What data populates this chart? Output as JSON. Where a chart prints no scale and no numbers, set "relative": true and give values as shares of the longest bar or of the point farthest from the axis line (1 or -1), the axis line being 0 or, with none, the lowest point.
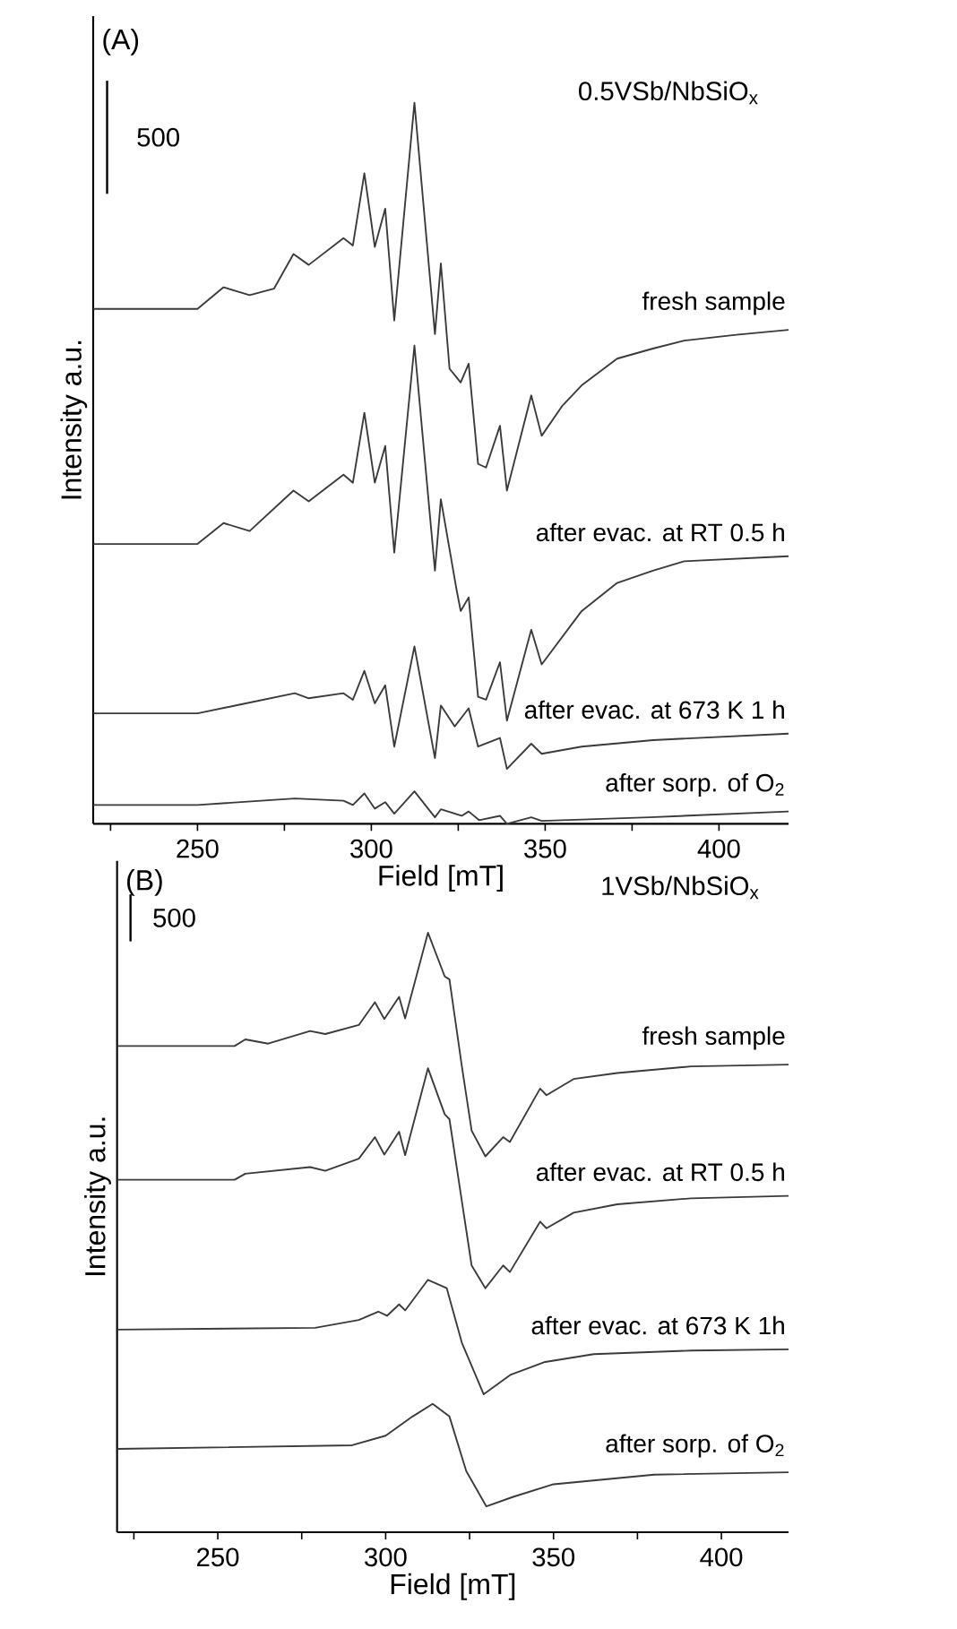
{
  "chart_data": [
    {
      "type": "line",
      "title": "(A)",
      "subtitle": "0.5VSb/NbSiO$_{x}$",
      "xlabel": "Field [mT]",
      "ylabel": "Intensity a.u.",
      "relative": true,
      "annotations": [
        "500"
      ],
      "xlim": [
        220,
        420
      ],
      "xticks": [
        {
          "value": 225,
          "label": null
        },
        250,
        {
          "value": 275,
          "label": null
        },
        300,
        {
          "value": 325,
          "label": null
        },
        350,
        {
          "value": 375,
          "label": null
        },
        400
      ],
      "series": [
        {
          "name": "fresh sample",
          "color": "#3a3a3a",
          "x": [
            220,
            250,
            257.5,
            265,
            272,
            277.6,
            282,
            292,
            294.7,
            298,
            301,
            304,
            306.6,
            312.4,
            318.3,
            320,
            322.5,
            325.7,
            328,
            330.7,
            333,
            337,
            339,
            346,
            349,
            355,
            360.5,
            370.7,
            381,
            390,
            405,
            420
          ],
          "values": [
            0.714,
            0.714,
            0.744,
            0.733,
            0.742,
            0.79,
            0.775,
            0.812,
            0.802,
            0.902,
            0.8,
            0.853,
            0.698,
            1.0,
            0.679,
            0.777,
            0.631,
            0.612,
            0.638,
            0.499,
            0.494,
            0.552,
            0.462,
            0.594,
            0.538,
            0.58,
            0.608,
            0.645,
            0.659,
            0.67,
            0.678,
            0.685
          ]
        },
        {
          "name": "after evac. at RT 0.5 h",
          "color": "#3a3a3a",
          "x": [
            220,
            250,
            257.5,
            265,
            277.6,
            282,
            292,
            294.7,
            298,
            301,
            304,
            306.6,
            312.4,
            318.3,
            320,
            324.5,
            325.7,
            328,
            330.7,
            333,
            337,
            339,
            346,
            349,
            360.5,
            370.7,
            381,
            390,
            420
          ],
          "values": [
            0.388,
            0.388,
            0.417,
            0.406,
            0.462,
            0.447,
            0.484,
            0.473,
            0.57,
            0.473,
            0.524,
            0.376,
            0.663,
            0.351,
            0.45,
            0.325,
            0.295,
            0.314,
            0.176,
            0.172,
            0.224,
            0.143,
            0.269,
            0.221,
            0.295,
            0.334,
            0.351,
            0.364,
            0.371
          ]
        },
        {
          "name": "after evac. at 673 K 1 h",
          "color": "#3a3a3a",
          "x": [
            220,
            250,
            262,
            278,
            282,
            292,
            294.7,
            298,
            301,
            304,
            306.6,
            312.4,
            318.3,
            320,
            324,
            328,
            330.7,
            337,
            339,
            346,
            349,
            360.5,
            381,
            420
          ],
          "values": [
            0.153,
            0.153,
            0.165,
            0.181,
            0.174,
            0.181,
            0.172,
            0.212,
            0.167,
            0.192,
            0.107,
            0.246,
            0.091,
            0.164,
            0.135,
            0.16,
            0.107,
            0.119,
            0.076,
            0.111,
            0.097,
            0.107,
            0.116,
            0.125
          ]
        },
        {
          "name": "after sorp. of O$_{2}$",
          "color": "#3a3a3a",
          "x": [
            220,
            250,
            278,
            292,
            294.7,
            298,
            301,
            304,
            306.6,
            312.4,
            318.3,
            320,
            326,
            328,
            331,
            337,
            339,
            346,
            349,
            380,
            420
          ],
          "values": [
            0.026,
            0.026,
            0.035,
            0.032,
            0.026,
            0.042,
            0.021,
            0.03,
            0.014,
            0.045,
            0.009,
            0.02,
            0.011,
            0.017,
            0.005,
            0.011,
            0,
            0.009,
            0.004,
            0.009,
            0.017
          ]
        }
      ]
    },
    {
      "type": "line",
      "title": "(B)",
      "subtitle": "1VSb/NbSiO$_{x}$",
      "xlabel": "Field [mT]",
      "ylabel": "Intensity a.u.",
      "relative": true,
      "annotations": [
        "500"
      ],
      "xlim": [
        220,
        420
      ],
      "xticks": [
        {
          "value": 225,
          "label": null
        },
        250,
        {
          "value": 275,
          "label": null
        },
        300,
        {
          "value": 325,
          "label": null
        },
        350,
        {
          "value": 375,
          "label": null
        },
        400
      ],
      "series": [
        {
          "name": "fresh sample",
          "color": "#3a3a3a",
          "x": [
            220,
            255,
            258.2,
            265,
            277.5,
            282,
            292,
            296.8,
            299.6,
            304,
            305.8,
            312.6,
            317.6,
            319,
            322.7,
            325.6,
            329.7,
            335,
            337,
            346,
            347.9,
            356,
            369,
            391,
            420
          ],
          "values": [
            0.811,
            0.811,
            0.822,
            0.815,
            0.836,
            0.831,
            0.846,
            0.884,
            0.856,
            0.893,
            0.857,
            1.0,
            0.927,
            0.922,
            0.777,
            0.67,
            0.627,
            0.659,
            0.651,
            0.74,
            0.729,
            0.756,
            0.766,
            0.777,
            0.78
          ]
        },
        {
          "name": "after evac. at RT 0.5 h",
          "color": "#3a3a3a",
          "x": [
            220,
            255,
            258.2,
            277.5,
            282,
            292,
            296.8,
            299.6,
            304,
            305.8,
            312.6,
            317.6,
            319,
            322.7,
            325.6,
            329.7,
            335,
            337,
            346,
            347.9,
            356,
            369,
            391,
            420
          ],
          "values": [
            0.588,
            0.588,
            0.598,
            0.609,
            0.603,
            0.623,
            0.659,
            0.63,
            0.668,
            0.629,
            0.774,
            0.697,
            0.689,
            0.552,
            0.445,
            0.407,
            0.445,
            0.434,
            0.518,
            0.507,
            0.533,
            0.547,
            0.557,
            0.561
          ]
        },
        {
          "name": "after evac. at 673 K  1h",
          "color": "#3a3a3a",
          "x": [
            220,
            279,
            292,
            297.8,
            300.4,
            304,
            305.8,
            312.6,
            318.2,
            322.7,
            329.2,
            337.3,
            347.5,
            362,
            391,
            420
          ],
          "values": [
            0.338,
            0.341,
            0.354,
            0.368,
            0.361,
            0.38,
            0.37,
            0.421,
            0.407,
            0.316,
            0.23,
            0.263,
            0.284,
            0.297,
            0.303,
            0.305
          ]
        },
        {
          "name": "after sorp. of O$_{2}$",
          "color": "#3a3a3a",
          "x": [
            220,
            290,
            300,
            308,
            314,
            319,
            324,
            330,
            338,
            350,
            380,
            420
          ],
          "values": [
            0.139,
            0.145,
            0.161,
            0.193,
            0.214,
            0.193,
            0.102,
            0.043,
            0.059,
            0.08,
            0.096,
            0.1
          ]
        }
      ]
    }
  ]
}
